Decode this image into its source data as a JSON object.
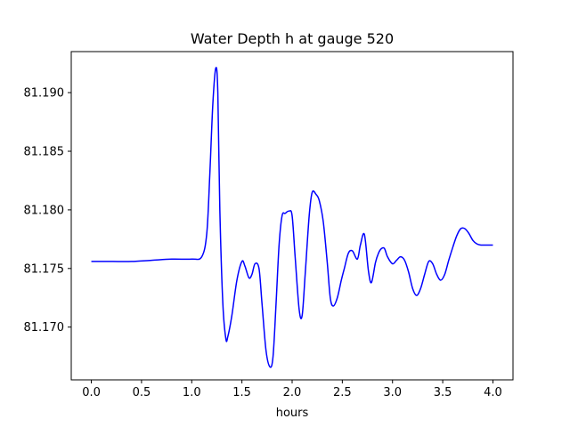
{
  "chart_data": {
    "type": "line",
    "title": "Water Depth h at gauge 520",
    "xlabel": "hours",
    "ylabel": "",
    "xlim": [
      -0.2,
      4.2
    ],
    "ylim": [
      81.1655,
      81.1935
    ],
    "xticks": [
      0.0,
      0.5,
      1.0,
      1.5,
      2.0,
      2.5,
      3.0,
      3.5,
      4.0
    ],
    "xtick_labels": [
      "0.0",
      "0.5",
      "1.0",
      "1.5",
      "2.0",
      "2.5",
      "3.0",
      "3.5",
      "4.0"
    ],
    "yticks": [
      81.17,
      81.175,
      81.18,
      81.185,
      81.19
    ],
    "ytick_labels": [
      "81.170",
      "81.175",
      "81.180",
      "81.185",
      "81.190"
    ],
    "grid": false,
    "series": [
      {
        "color": "#0000ff",
        "x": [
          0.0,
          0.2,
          0.4,
          0.6,
          0.8,
          1.0,
          1.1,
          1.15,
          1.18,
          1.21,
          1.24,
          1.26,
          1.28,
          1.31,
          1.34,
          1.36,
          1.4,
          1.45,
          1.5,
          1.53,
          1.57,
          1.6,
          1.63,
          1.67,
          1.7,
          1.74,
          1.78,
          1.81,
          1.84,
          1.87,
          1.9,
          1.93,
          1.97,
          2.0,
          2.03,
          2.07,
          2.1,
          2.13,
          2.17,
          2.2,
          2.24,
          2.27,
          2.31,
          2.35,
          2.38,
          2.41,
          2.45,
          2.49,
          2.52,
          2.56,
          2.6,
          2.65,
          2.68,
          2.72,
          2.76,
          2.79,
          2.83,
          2.86,
          2.89,
          2.92,
          2.95,
          3.0,
          3.04,
          3.08,
          3.12,
          3.16,
          3.2,
          3.24,
          3.28,
          3.32,
          3.36,
          3.4,
          3.44,
          3.48,
          3.52,
          3.56,
          3.6,
          3.64,
          3.68,
          3.72,
          3.76,
          3.8,
          3.84,
          3.88,
          3.92,
          3.96,
          4.0
        ],
        "values": [
          81.1756,
          81.1756,
          81.1756,
          81.1757,
          81.1758,
          81.1758,
          81.176,
          81.178,
          81.183,
          81.189,
          81.1921,
          81.19,
          81.18,
          81.172,
          81.169,
          81.1692,
          81.171,
          81.174,
          81.1756,
          81.1752,
          81.1742,
          81.1745,
          81.1754,
          81.175,
          81.172,
          81.168,
          81.1666,
          81.1675,
          81.172,
          81.177,
          81.1795,
          81.1797,
          81.1799,
          81.1795,
          81.176,
          81.1715,
          81.171,
          81.1745,
          81.1795,
          81.1815,
          81.1813,
          81.1808,
          81.179,
          81.1755,
          81.1725,
          81.1718,
          81.1725,
          81.174,
          81.175,
          81.1763,
          81.1765,
          81.1758,
          81.177,
          81.1779,
          81.1748,
          81.1738,
          81.1755,
          81.1763,
          81.1767,
          81.1767,
          81.176,
          81.1754,
          81.1757,
          81.176,
          81.1757,
          81.1747,
          81.1733,
          81.1727,
          81.1733,
          81.1745,
          81.1756,
          81.1754,
          81.1745,
          81.174,
          81.1745,
          81.1757,
          81.1768,
          81.1778,
          81.1784,
          81.1784,
          81.178,
          81.1774,
          81.1771,
          81.177,
          81.177,
          81.177,
          81.177
        ]
      }
    ]
  }
}
